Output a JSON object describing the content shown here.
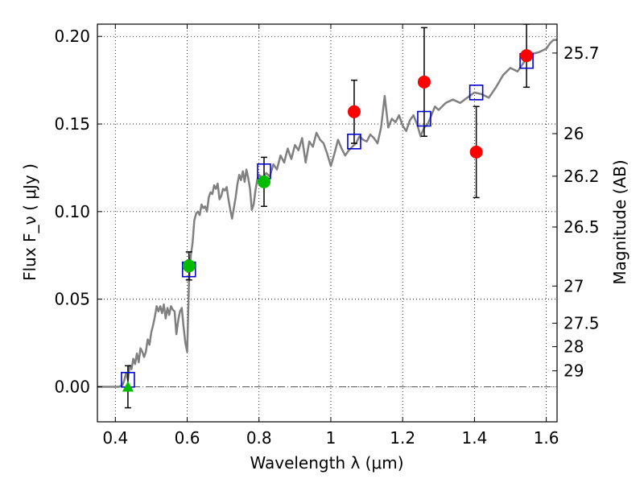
{
  "chart_data": {
    "type": "scatter",
    "xlabel": "Wavelength  λ (μm)",
    "ylabel": "Flux  F_ν  ( μJy )",
    "y2label": "Magnitude (AB)",
    "xlim": [
      0.35,
      1.63
    ],
    "ylim": [
      -0.02,
      0.207
    ],
    "grid": true,
    "x_ticks": [
      0.4,
      0.6,
      0.8,
      1.0,
      1.2,
      1.4,
      1.6
    ],
    "x_tick_labels": [
      "0.4",
      "0.6",
      "0.8",
      "1",
      "1.2",
      "1.4",
      "1.6"
    ],
    "y_ticks": [
      0.0,
      0.05,
      0.1,
      0.15,
      0.2
    ],
    "y_tick_labels": [
      "0.00",
      "0.05",
      "0.10",
      "0.15",
      "0.20"
    ],
    "mag_ticks": [
      {
        "label": "25.7",
        "flux": 0.1905
      },
      {
        "label": "26",
        "flux": 0.1445
      },
      {
        "label": "26.2",
        "flux": 0.1202
      },
      {
        "label": "26.5",
        "flux": 0.0912
      },
      {
        "label": "27",
        "flux": 0.0575
      },
      {
        "label": "27.5",
        "flux": 0.0363
      },
      {
        "label": "28",
        "flux": 0.0229
      },
      {
        "label": "29",
        "flux": 0.0091
      }
    ],
    "colors": {
      "model": "#808080",
      "model_photometry": "#0000cc",
      "detections": "#ff0000",
      "ground_detections": "#00bb00",
      "upper_limit": "#00bb00",
      "errorbar": "#000000",
      "zero_line": "#555555"
    },
    "series": [
      {
        "role": "model_spectrum",
        "x": [
          0.35,
          0.4,
          0.41,
          0.42,
          0.425,
          0.43,
          0.435,
          0.44,
          0.445,
          0.45,
          0.455,
          0.46,
          0.465,
          0.47,
          0.475,
          0.48,
          0.485,
          0.49,
          0.495,
          0.5,
          0.505,
          0.51,
          0.515,
          0.52,
          0.525,
          0.53,
          0.535,
          0.54,
          0.545,
          0.55,
          0.555,
          0.56,
          0.565,
          0.57,
          0.575,
          0.58,
          0.585,
          0.59,
          0.595,
          0.6,
          0.605,
          0.61,
          0.615,
          0.62,
          0.625,
          0.63,
          0.635,
          0.64,
          0.645,
          0.65,
          0.655,
          0.66,
          0.665,
          0.67,
          0.675,
          0.68,
          0.685,
          0.69,
          0.695,
          0.7,
          0.705,
          0.71,
          0.715,
          0.72,
          0.725,
          0.73,
          0.735,
          0.74,
          0.745,
          0.75,
          0.755,
          0.76,
          0.765,
          0.77,
          0.775,
          0.78,
          0.785,
          0.79,
          0.795,
          0.8,
          0.81,
          0.82,
          0.83,
          0.84,
          0.85,
          0.86,
          0.87,
          0.88,
          0.89,
          0.9,
          0.91,
          0.92,
          0.93,
          0.94,
          0.95,
          0.96,
          0.97,
          0.98,
          0.99,
          1.0,
          1.01,
          1.02,
          1.03,
          1.04,
          1.05,
          1.06,
          1.07,
          1.08,
          1.09,
          1.1,
          1.11,
          1.12,
          1.13,
          1.14,
          1.15,
          1.16,
          1.17,
          1.18,
          1.19,
          1.2,
          1.21,
          1.22,
          1.23,
          1.24,
          1.25,
          1.26,
          1.27,
          1.28,
          1.29,
          1.3,
          1.32,
          1.34,
          1.36,
          1.38,
          1.4,
          1.42,
          1.44,
          1.46,
          1.48,
          1.5,
          1.52,
          1.54,
          1.56,
          1.58,
          1.6,
          1.61,
          1.62,
          1.63
        ],
        "y": [
          0.0,
          0.0,
          0.0,
          0.001,
          0.004,
          0.008,
          0.004,
          0.012,
          0.01,
          0.016,
          0.013,
          0.019,
          0.014,
          0.022,
          0.02,
          0.017,
          0.02,
          0.027,
          0.024,
          0.031,
          0.035,
          0.04,
          0.046,
          0.043,
          0.046,
          0.042,
          0.047,
          0.039,
          0.045,
          0.041,
          0.046,
          0.044,
          0.043,
          0.03,
          0.038,
          0.043,
          0.045,
          0.034,
          0.025,
          0.02,
          0.06,
          0.075,
          0.082,
          0.095,
          0.099,
          0.1,
          0.098,
          0.104,
          0.102,
          0.103,
          0.1,
          0.108,
          0.111,
          0.11,
          0.115,
          0.113,
          0.116,
          0.107,
          0.109,
          0.113,
          0.112,
          0.114,
          0.107,
          0.101,
          0.096,
          0.102,
          0.108,
          0.116,
          0.121,
          0.118,
          0.123,
          0.117,
          0.124,
          0.119,
          0.113,
          0.101,
          0.104,
          0.112,
          0.118,
          0.121,
          0.119,
          0.122,
          0.12,
          0.127,
          0.124,
          0.132,
          0.128,
          0.136,
          0.13,
          0.138,
          0.135,
          0.142,
          0.128,
          0.14,
          0.137,
          0.145,
          0.141,
          0.139,
          0.133,
          0.126,
          0.133,
          0.141,
          0.136,
          0.132,
          0.135,
          0.137,
          0.139,
          0.143,
          0.141,
          0.14,
          0.144,
          0.142,
          0.139,
          0.148,
          0.166,
          0.148,
          0.153,
          0.151,
          0.155,
          0.149,
          0.146,
          0.152,
          0.155,
          0.15,
          0.143,
          0.148,
          0.15,
          0.155,
          0.16,
          0.158,
          0.162,
          0.164,
          0.162,
          0.165,
          0.168,
          0.167,
          0.165,
          0.171,
          0.178,
          0.182,
          0.18,
          0.186,
          0.19,
          0.191,
          0.193,
          0.196,
          0.198,
          0.198
        ]
      },
      {
        "role": "model_photometry",
        "x": [
          0.435,
          0.605,
          0.814,
          1.065,
          1.26,
          1.405,
          1.545
        ],
        "y": [
          0.004,
          0.067,
          0.123,
          0.14,
          0.153,
          0.168,
          0.186
        ]
      },
      {
        "role": "detections",
        "x": [
          1.065,
          1.26,
          1.405,
          1.545
        ],
        "y": [
          0.157,
          0.174,
          0.134,
          0.189
        ],
        "yerr": [
          0.018,
          0.031,
          0.026,
          0.018
        ]
      },
      {
        "role": "ground_detections",
        "x": [
          0.605,
          0.814
        ],
        "y": [
          0.069,
          0.117
        ],
        "yerr": [
          0.008,
          0.014
        ]
      },
      {
        "role": "upper_limit",
        "x": [
          0.435
        ],
        "y": [
          0.0
        ],
        "yerr": [
          0.012
        ]
      }
    ]
  }
}
